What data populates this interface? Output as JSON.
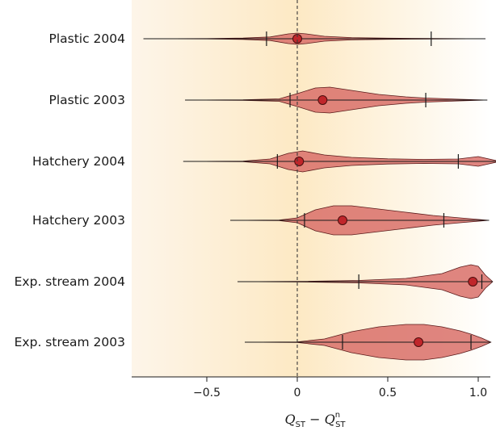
{
  "chart_data": {
    "type": "violin",
    "x_axis": {
      "label_main": "Q",
      "label_sub": "ST",
      "label_minus": " − ",
      "label_main2": "Q",
      "label_sub2": "ST",
      "label_sup2": "n",
      "range": [
        -0.93,
        1.1
      ],
      "ticks": [
        -0.5,
        0,
        0.5,
        1.0
      ],
      "tick_labels": [
        "−0.5",
        "0",
        "0.5",
        "1.0"
      ],
      "reference_line": 0
    },
    "colors": {
      "violin_fill": "#d9706a",
      "violin_edge": "#5a1a1a",
      "point_fill": "#c0262b",
      "background_left": "#fdf5e9",
      "background_peak": "#fde9c4",
      "background_right": "#ffffff"
    },
    "series": [
      {
        "label": "Plastic 2004",
        "median": 0.0,
        "lo95": -0.85,
        "hi95": 1.04,
        "lo": -0.17,
        "hi": 0.74,
        "shape": [
          [
            -0.85,
            0
          ],
          [
            -0.5,
            0.2
          ],
          [
            -0.3,
            0.8
          ],
          [
            -0.15,
            2.2
          ],
          [
            -0.05,
            6
          ],
          [
            0.0,
            7
          ],
          [
            0.05,
            6
          ],
          [
            0.15,
            3
          ],
          [
            0.3,
            1.4
          ],
          [
            0.5,
            0.7
          ],
          [
            0.74,
            0.3
          ],
          [
            1.04,
            0
          ]
        ]
      },
      {
        "label": "Plastic 2003",
        "median": 0.14,
        "lo95": -0.62,
        "hi95": 1.05,
        "lo": -0.04,
        "hi": 0.71,
        "shape": [
          [
            -0.62,
            0
          ],
          [
            -0.3,
            0.3
          ],
          [
            -0.1,
            1.5
          ],
          [
            0.0,
            8
          ],
          [
            0.1,
            15
          ],
          [
            0.18,
            16
          ],
          [
            0.3,
            12
          ],
          [
            0.45,
            7
          ],
          [
            0.6,
            4
          ],
          [
            0.71,
            2.5
          ],
          [
            0.9,
            1.0
          ],
          [
            1.05,
            0
          ]
        ]
      },
      {
        "label": "Hatchery 2004",
        "median": 0.01,
        "lo95": -0.63,
        "hi95": 1.12,
        "lo": -0.11,
        "hi": 0.89,
        "shape": [
          [
            -0.63,
            0
          ],
          [
            -0.3,
            0.4
          ],
          [
            -0.15,
            3
          ],
          [
            -0.05,
            10
          ],
          [
            0.03,
            13
          ],
          [
            0.15,
            8
          ],
          [
            0.3,
            5
          ],
          [
            0.5,
            3.2
          ],
          [
            0.7,
            2.5
          ],
          [
            0.89,
            3
          ],
          [
            1.0,
            6
          ],
          [
            1.12,
            0
          ]
        ]
      },
      {
        "label": "Hatchery 2003",
        "median": 0.25,
        "lo95": -0.37,
        "hi95": 1.06,
        "lo": 0.04,
        "hi": 0.81,
        "shape": [
          [
            -0.37,
            0
          ],
          [
            -0.1,
            0.4
          ],
          [
            0.0,
            3
          ],
          [
            0.1,
            13
          ],
          [
            0.2,
            18
          ],
          [
            0.3,
            18
          ],
          [
            0.45,
            14
          ],
          [
            0.6,
            10
          ],
          [
            0.75,
            6
          ],
          [
            0.9,
            3
          ],
          [
            1.06,
            0
          ]
        ]
      },
      {
        "label": "Exp. stream 2004",
        "median": 0.97,
        "lo95": -0.33,
        "hi95": 1.08,
        "lo": 0.34,
        "hi": 1.02,
        "shape": [
          [
            -0.33,
            0
          ],
          [
            0.0,
            0.3
          ],
          [
            0.34,
            1.5
          ],
          [
            0.6,
            4
          ],
          [
            0.8,
            10
          ],
          [
            0.9,
            18
          ],
          [
            0.96,
            21
          ],
          [
            1.0,
            19
          ],
          [
            1.04,
            8
          ],
          [
            1.08,
            0
          ]
        ]
      },
      {
        "label": "Exp. stream 2003",
        "median": 0.67,
        "lo95": -0.29,
        "hi95": 1.07,
        "lo": 0.25,
        "hi": 0.96,
        "shape": [
          [
            -0.29,
            0
          ],
          [
            0.0,
            0.4
          ],
          [
            0.15,
            4
          ],
          [
            0.3,
            13
          ],
          [
            0.45,
            19
          ],
          [
            0.6,
            22
          ],
          [
            0.7,
            22
          ],
          [
            0.8,
            19
          ],
          [
            0.9,
            14
          ],
          [
            0.96,
            10
          ],
          [
            1.02,
            5
          ],
          [
            1.07,
            0
          ]
        ]
      }
    ]
  }
}
